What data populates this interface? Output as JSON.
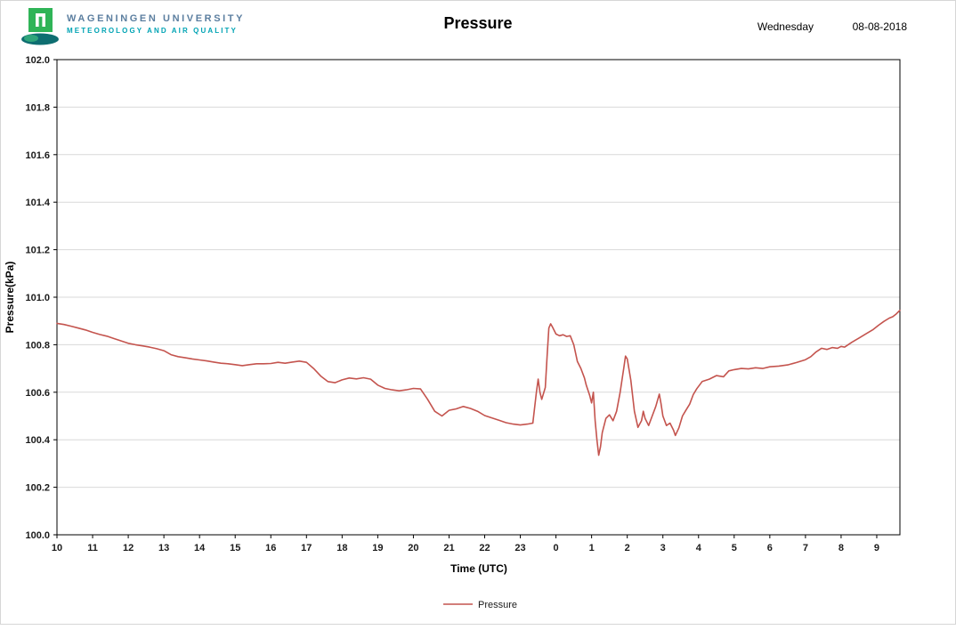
{
  "header": {
    "university_line1": "WAGENINGEN UNIVERSITY",
    "university_line2": "METEOROLOGY AND AIR QUALITY",
    "title": "Pressure",
    "weekday": "Wednesday",
    "date": "08-08-2018",
    "brand_colors": {
      "logo_green": "#2fb457",
      "logo_teal": "#0e6e71",
      "university_name_color": "#5b7e9f",
      "department_color": "#00a3b4"
    }
  },
  "chart_data": {
    "type": "line",
    "title": "Pressure",
    "xlabel": "Time (UTC)",
    "ylabel": "Pressure(kPa)",
    "ylim": [
      100.0,
      102.0
    ],
    "y_tick_step": 0.2,
    "x_span_hours": 23.65,
    "x_tick_labels": [
      "10",
      "11",
      "12",
      "13",
      "14",
      "15",
      "16",
      "17",
      "18",
      "19",
      "20",
      "21",
      "22",
      "23",
      "0",
      "1",
      "2",
      "3",
      "4",
      "5",
      "6",
      "7",
      "8",
      "9"
    ],
    "legend_label": "Pressure",
    "legend_position": "bottom",
    "grid": "horizontal",
    "line_color": "#c4544e",
    "grid_color": "#d9d9d9",
    "axis_color": "#000000",
    "points": [
      [
        0,
        100.89
      ],
      [
        0.2,
        100.885
      ],
      [
        0.4,
        100.878
      ],
      [
        0.6,
        100.87
      ],
      [
        0.8,
        100.862
      ],
      [
        1,
        100.852
      ],
      [
        1.2,
        100.843
      ],
      [
        1.4,
        100.836
      ],
      [
        1.6,
        100.826
      ],
      [
        1.8,
        100.816
      ],
      [
        2,
        100.806
      ],
      [
        2.2,
        100.8
      ],
      [
        2.4,
        100.795
      ],
      [
        2.6,
        100.79
      ],
      [
        2.8,
        100.783
      ],
      [
        3,
        100.775
      ],
      [
        3.2,
        100.758
      ],
      [
        3.4,
        100.75
      ],
      [
        3.6,
        100.745
      ],
      [
        3.8,
        100.74
      ],
      [
        4,
        100.736
      ],
      [
        4.2,
        100.732
      ],
      [
        4.4,
        100.727
      ],
      [
        4.6,
        100.722
      ],
      [
        4.8,
        100.72
      ],
      [
        5,
        100.716
      ],
      [
        5.2,
        100.712
      ],
      [
        5.4,
        100.716
      ],
      [
        5.6,
        100.72
      ],
      [
        5.8,
        100.72
      ],
      [
        6,
        100.721
      ],
      [
        6.2,
        100.726
      ],
      [
        6.4,
        100.722
      ],
      [
        6.6,
        100.727
      ],
      [
        6.8,
        100.731
      ],
      [
        7,
        100.726
      ],
      [
        7.2,
        100.7
      ],
      [
        7.4,
        100.668
      ],
      [
        7.6,
        100.645
      ],
      [
        7.8,
        100.64
      ],
      [
        8,
        100.652
      ],
      [
        8.2,
        100.66
      ],
      [
        8.4,
        100.656
      ],
      [
        8.6,
        100.661
      ],
      [
        8.8,
        100.655
      ],
      [
        9,
        100.63
      ],
      [
        9.2,
        100.616
      ],
      [
        9.4,
        100.61
      ],
      [
        9.6,
        100.606
      ],
      [
        9.8,
        100.61
      ],
      [
        10,
        100.616
      ],
      [
        10.2,
        100.614
      ],
      [
        10.4,
        100.57
      ],
      [
        10.6,
        100.52
      ],
      [
        10.8,
        100.5
      ],
      [
        11,
        100.524
      ],
      [
        11.2,
        100.53
      ],
      [
        11.4,
        100.54
      ],
      [
        11.6,
        100.532
      ],
      [
        11.8,
        100.52
      ],
      [
        12,
        100.502
      ],
      [
        12.2,
        100.492
      ],
      [
        12.4,
        100.482
      ],
      [
        12.6,
        100.472
      ],
      [
        12.8,
        100.466
      ],
      [
        13,
        100.462
      ],
      [
        13.2,
        100.466
      ],
      [
        13.35,
        100.47
      ],
      [
        13.45,
        100.6
      ],
      [
        13.5,
        100.655
      ],
      [
        13.55,
        100.6
      ],
      [
        13.6,
        100.57
      ],
      [
        13.7,
        100.62
      ],
      [
        13.75,
        100.75
      ],
      [
        13.8,
        100.87
      ],
      [
        13.85,
        100.888
      ],
      [
        13.9,
        100.875
      ],
      [
        14,
        100.845
      ],
      [
        14.1,
        100.838
      ],
      [
        14.2,
        100.842
      ],
      [
        14.3,
        100.835
      ],
      [
        14.4,
        100.838
      ],
      [
        14.5,
        100.8
      ],
      [
        14.6,
        100.73
      ],
      [
        14.7,
        100.7
      ],
      [
        14.8,
        100.66
      ],
      [
        14.85,
        100.63
      ],
      [
        14.95,
        100.585
      ],
      [
        15,
        100.555
      ],
      [
        15.05,
        100.6
      ],
      [
        15.1,
        100.48
      ],
      [
        15.15,
        100.4
      ],
      [
        15.2,
        100.335
      ],
      [
        15.25,
        100.37
      ],
      [
        15.3,
        100.43
      ],
      [
        15.4,
        100.49
      ],
      [
        15.5,
        100.505
      ],
      [
        15.6,
        100.48
      ],
      [
        15.7,
        100.52
      ],
      [
        15.8,
        100.6
      ],
      [
        15.9,
        100.7
      ],
      [
        15.95,
        100.752
      ],
      [
        16,
        100.74
      ],
      [
        16.1,
        100.65
      ],
      [
        16.2,
        100.52
      ],
      [
        16.3,
        100.452
      ],
      [
        16.4,
        100.48
      ],
      [
        16.45,
        100.52
      ],
      [
        16.5,
        100.49
      ],
      [
        16.6,
        100.46
      ],
      [
        16.7,
        100.5
      ],
      [
        16.8,
        100.54
      ],
      [
        16.9,
        100.592
      ],
      [
        16.95,
        100.55
      ],
      [
        17,
        100.5
      ],
      [
        17.1,
        100.46
      ],
      [
        17.2,
        100.47
      ],
      [
        17.3,
        100.44
      ],
      [
        17.35,
        100.418
      ],
      [
        17.45,
        100.45
      ],
      [
        17.55,
        100.5
      ],
      [
        17.65,
        100.525
      ],
      [
        17.75,
        100.55
      ],
      [
        17.85,
        100.59
      ],
      [
        17.95,
        100.615
      ],
      [
        18.1,
        100.645
      ],
      [
        18.3,
        100.655
      ],
      [
        18.5,
        100.67
      ],
      [
        18.7,
        100.665
      ],
      [
        18.85,
        100.69
      ],
      [
        19,
        100.695
      ],
      [
        19.2,
        100.7
      ],
      [
        19.4,
        100.698
      ],
      [
        19.6,
        100.703
      ],
      [
        19.8,
        100.7
      ],
      [
        20,
        100.707
      ],
      [
        20.25,
        100.71
      ],
      [
        20.5,
        100.715
      ],
      [
        20.75,
        100.725
      ],
      [
        21,
        100.737
      ],
      [
        21.15,
        100.75
      ],
      [
        21.3,
        100.77
      ],
      [
        21.45,
        100.785
      ],
      [
        21.6,
        100.78
      ],
      [
        21.75,
        100.788
      ],
      [
        21.9,
        100.785
      ],
      [
        22,
        100.793
      ],
      [
        22.1,
        100.79
      ],
      [
        22.3,
        100.81
      ],
      [
        22.5,
        100.828
      ],
      [
        22.7,
        100.846
      ],
      [
        22.9,
        100.864
      ],
      [
        23.05,
        100.882
      ],
      [
        23.2,
        100.898
      ],
      [
        23.35,
        100.912
      ],
      [
        23.45,
        100.918
      ],
      [
        23.55,
        100.93
      ],
      [
        23.65,
        100.945
      ]
    ]
  }
}
